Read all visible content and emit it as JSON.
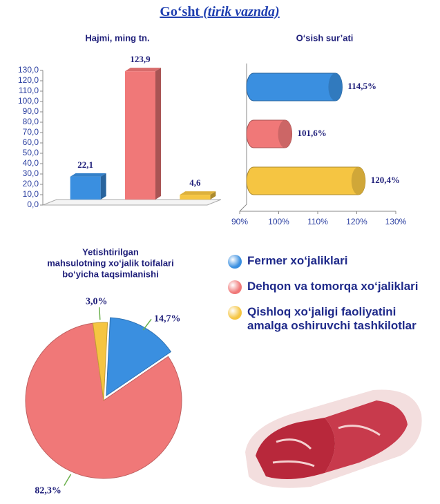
{
  "header": {
    "title": "Go‘sht",
    "title_note": "(tirik vaznda)"
  },
  "legend": [
    {
      "name": "Fermer xo‘jaliklari",
      "color": "#3a8fe0"
    },
    {
      "name": "Dehqon va tomorqa xo‘jaliklari",
      "color": "#f07878"
    },
    {
      "name": "Qishloq xo‘jaligi faoliyatini amalga oshiruvchi tashkilotlar",
      "color": "#f5c542"
    }
  ],
  "chart_data": [
    {
      "type": "bar",
      "title": "Hajmi, ming tn.",
      "values": [
        22.1,
        123.9,
        4.6
      ],
      "value_labels": [
        "22,1",
        "123,9",
        "4,6"
      ],
      "colors": [
        "#3a8fe0",
        "#f07878",
        "#f5c542"
      ],
      "ylim": [
        0,
        130
      ],
      "yticks": [
        {
          "value": 0,
          "label": "0,0"
        },
        {
          "value": 10,
          "label": "10,0"
        },
        {
          "value": 20,
          "label": "20,0"
        },
        {
          "value": 30,
          "label": "30,0"
        },
        {
          "value": 40,
          "label": "40,0"
        },
        {
          "value": 50,
          "label": "50,0"
        },
        {
          "value": 60,
          "label": "60,0"
        },
        {
          "value": 70,
          "label": "70,0"
        },
        {
          "value": 80,
          "label": "80,0"
        },
        {
          "value": 90,
          "label": "90,0"
        },
        {
          "value": 100,
          "label": "100,0"
        },
        {
          "value": 110,
          "label": "110,0"
        },
        {
          "value": 120,
          "label": "120,0"
        },
        {
          "value": 130,
          "label": "130,0"
        }
      ]
    },
    {
      "type": "barh",
      "title": "O‘sish sur’ati",
      "values": [
        114.5,
        101.6,
        120.4
      ],
      "value_labels": [
        "114,5%",
        "101,6%",
        "120,4%"
      ],
      "colors": [
        "#3a8fe0",
        "#f07878",
        "#f5c542"
      ],
      "xlim": [
        90,
        130
      ],
      "xticks": [
        {
          "value": 90,
          "label": "90%"
        },
        {
          "value": 100,
          "label": "100%"
        },
        {
          "value": 110,
          "label": "110%"
        },
        {
          "value": 120,
          "label": "120%"
        },
        {
          "value": 130,
          "label": "130%"
        }
      ]
    },
    {
      "type": "pie",
      "title_lines": [
        "Yetishtirilgan",
        "mahsulotning xo‘jalik toifalari",
        "bo‘yicha taqsimlanishi"
      ],
      "values": [
        14.7,
        82.3,
        3.0
      ],
      "value_labels": [
        "14,7%",
        "82,3%",
        "3,0%"
      ],
      "colors": [
        "#3a8fe0",
        "#f07878",
        "#f5c542"
      ]
    }
  ]
}
